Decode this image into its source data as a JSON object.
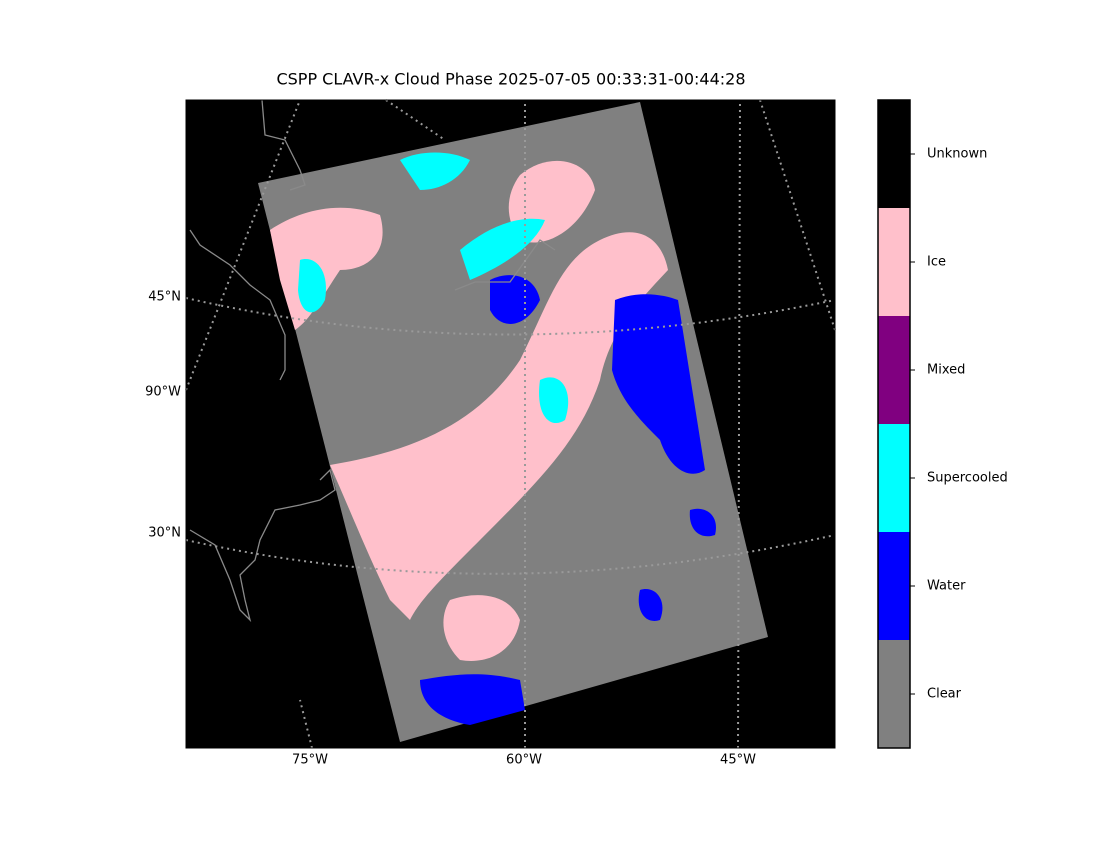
{
  "title": "CSPP CLAVR-x Cloud Phase 2025-07-05 00:33:31-00:44:28",
  "latitude_labels": [
    "45°N",
    "30°N"
  ],
  "longitude_labels": [
    "90°W",
    "75°W",
    "60°W",
    "45°W"
  ],
  "legend": [
    {
      "label": "Unknown",
      "color": "#000000"
    },
    {
      "label": "Ice",
      "color": "#ffc0cb"
    },
    {
      "label": "Mixed",
      "color": "#800080"
    },
    {
      "label": "Supercooled",
      "color": "#00ffff"
    },
    {
      "label": "Water",
      "color": "#0000ff"
    },
    {
      "label": "Clear",
      "color": "#808080"
    }
  ]
}
